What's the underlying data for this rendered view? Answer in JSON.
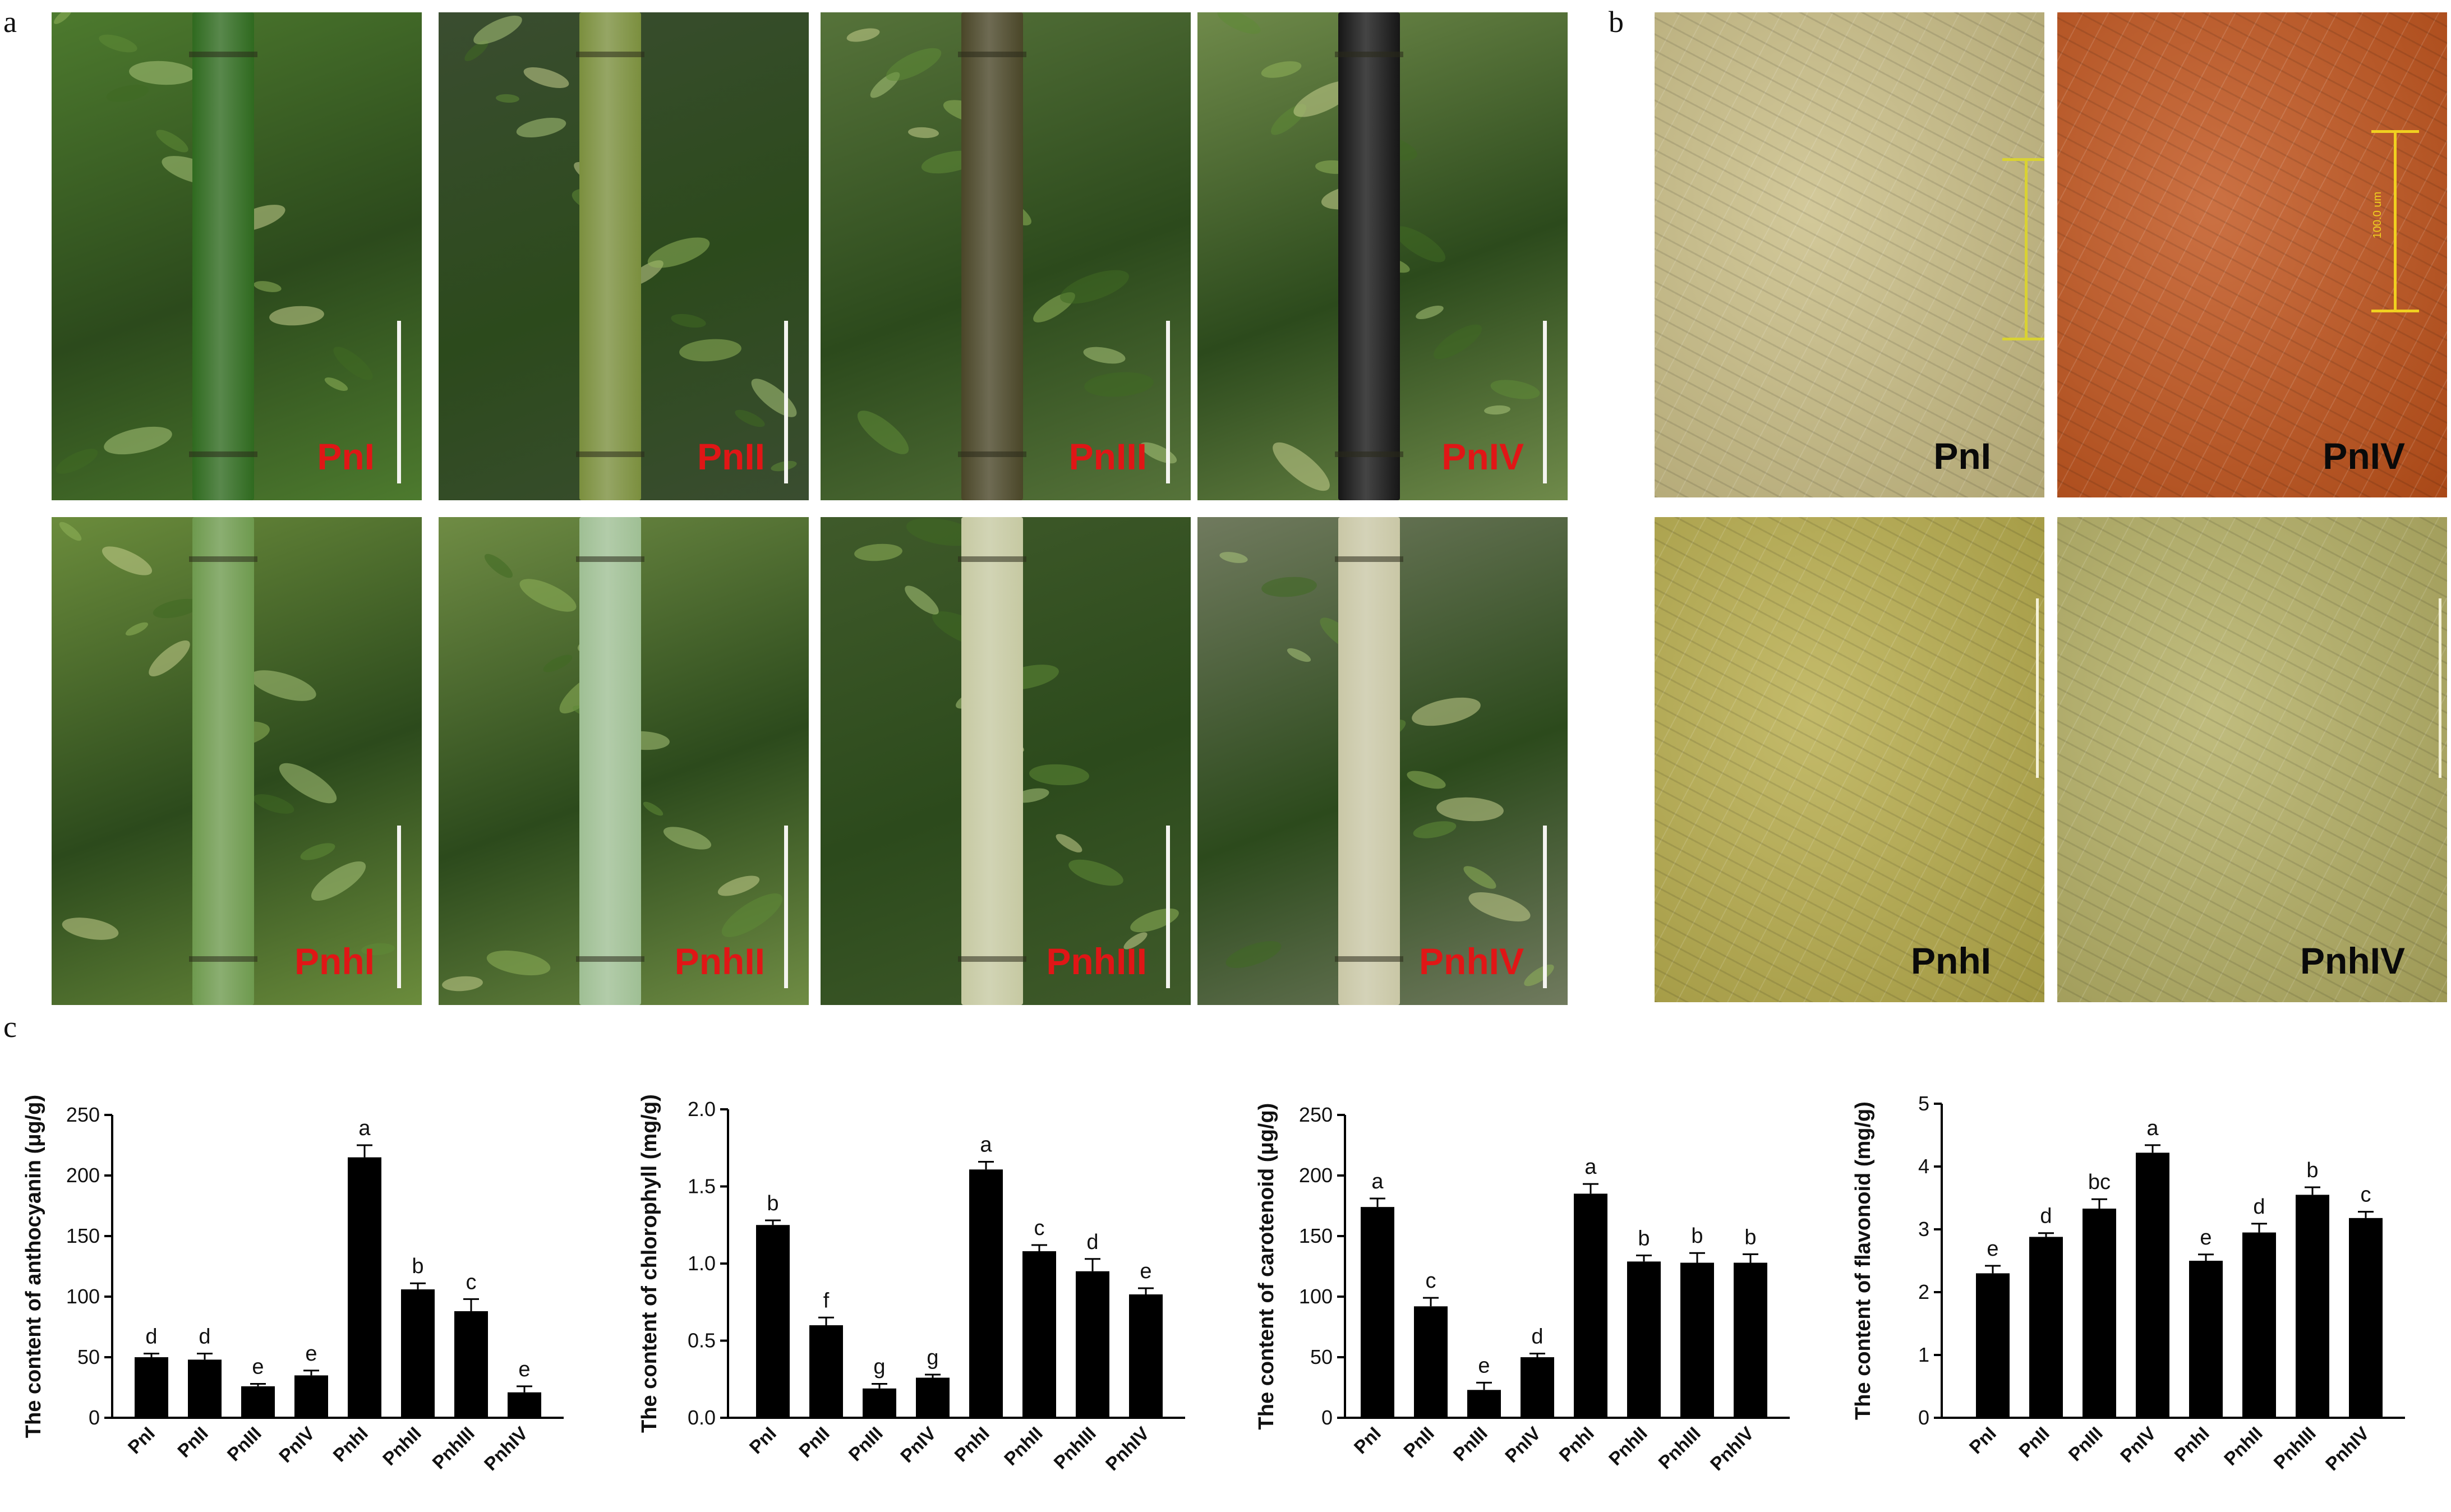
{
  "panel_letters": {
    "a": "a",
    "b": "b",
    "c": "c"
  },
  "photos_a": [
    {
      "label": "PnI",
      "bg": "#4d7a2e",
      "stem": "#2f6a1f"
    },
    {
      "label": "PnII",
      "bg": "#3a4d30",
      "stem": "#7b8f3e"
    },
    {
      "label": "PnIII",
      "bg": "#56733a",
      "stem": "#4a4628"
    },
    {
      "label": "PnIV",
      "bg": "#6f8a4a",
      "stem": "#161616"
    },
    {
      "label": "PnhI",
      "bg": "#6b8c3c",
      "stem": "#6e9a4e"
    },
    {
      "label": "PnhII",
      "bg": "#6f8c44",
      "stem": "#9fbf94"
    },
    {
      "label": "PnhIII",
      "bg": "#3f5a2a",
      "stem": "#c6c9a2"
    },
    {
      "label": "PnhIV",
      "bg": "#707a5e",
      "stem": "#c9c7a6"
    }
  ],
  "micro_b": [
    {
      "label": "PnI",
      "bg": "#c9bd84",
      "scale_color": "#d9d232",
      "scale_text": ""
    },
    {
      "label": "PnIV",
      "bg": "#c0521a",
      "scale_color": "#f0d020",
      "scale_text": "100.0 um"
    },
    {
      "label": "PnhI",
      "bg": "#b7ac4a",
      "scale_color": "#f4f1d8",
      "scale_text": ""
    },
    {
      "label": "PnhIV",
      "bg": "#b3ae62",
      "scale_color": "#f4f1d8",
      "scale_text": ""
    }
  ],
  "colors": {
    "bar": "#000000",
    "photo_label_red": "#e01616"
  },
  "chart_data": [
    {
      "type": "bar",
      "categories": [
        "PnI",
        "PnII",
        "PnIII",
        "PnIV",
        "PnhI",
        "PnhII",
        "PnhIII",
        "PnhIV"
      ],
      "values": [
        50,
        48,
        26,
        35,
        215,
        106,
        88,
        21
      ],
      "errors": [
        3,
        5,
        2,
        4,
        10,
        5,
        10,
        5
      ],
      "letters": [
        "d",
        "d",
        "e",
        "e",
        "a",
        "b",
        "c",
        "e"
      ],
      "ylabel": "The content of anthocyanin (μg/g)",
      "ylim": [
        0,
        250
      ],
      "yticks": [
        0,
        50,
        100,
        150,
        200,
        250
      ]
    },
    {
      "type": "bar",
      "categories": [
        "PnI",
        "PnII",
        "PnIII",
        "PnIV",
        "PnhI",
        "PnhII",
        "PnhIII",
        "PnhIV"
      ],
      "values": [
        1.25,
        0.6,
        0.19,
        0.26,
        1.61,
        1.08,
        0.95,
        0.8
      ],
      "errors": [
        0.03,
        0.05,
        0.03,
        0.02,
        0.05,
        0.04,
        0.08,
        0.04
      ],
      "letters": [
        "b",
        "f",
        "g",
        "g",
        "a",
        "c",
        "d",
        "e"
      ],
      "ylabel": "The content of chlorophyll (mg/g)",
      "ylim": [
        0,
        2.0
      ],
      "yticks": [
        "0.0",
        "0.5",
        "1.0",
        "1.5",
        "2.0"
      ]
    },
    {
      "type": "bar",
      "categories": [
        "PnI",
        "PnII",
        "PnIII",
        "PnIV",
        "PnhI",
        "PnhII",
        "PnhIII",
        "PnhIV"
      ],
      "values": [
        174,
        92,
        23,
        50,
        185,
        129,
        128,
        128
      ],
      "errors": [
        7,
        7,
        6,
        3,
        8,
        5,
        8,
        7
      ],
      "letters": [
        "a",
        "c",
        "e",
        "d",
        "a",
        "b",
        "b",
        "b"
      ],
      "ylabel": "The content of carotenoid (μg/g)",
      "ylim": [
        0,
        250
      ],
      "yticks": [
        0,
        50,
        100,
        150,
        200,
        250
      ]
    },
    {
      "type": "bar",
      "categories": [
        "PnI",
        "PnII",
        "PnIII",
        "PnIV",
        "PnhI",
        "PnhII",
        "PnhIII",
        "PnhIV"
      ],
      "values": [
        2.3,
        2.88,
        3.33,
        4.22,
        2.5,
        2.95,
        3.55,
        3.18
      ],
      "errors": [
        0.12,
        0.06,
        0.15,
        0.12,
        0.1,
        0.14,
        0.12,
        0.1
      ],
      "letters": [
        "e",
        "d",
        "bc",
        "a",
        "e",
        "d",
        "b",
        "c"
      ],
      "ylabel": "The content of flavonoid (mg/g)",
      "ylim": [
        0,
        5
      ],
      "yticks": [
        0,
        1,
        2,
        3,
        4,
        5
      ]
    }
  ]
}
